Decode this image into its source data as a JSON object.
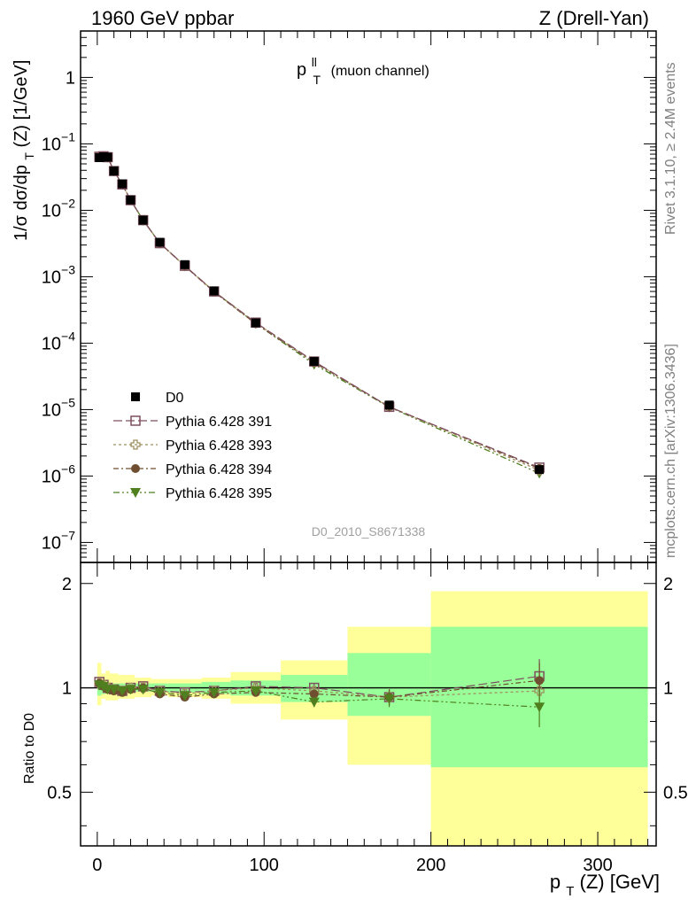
{
  "header": {
    "left": "1960 GeV ppbar",
    "right": "Z (Drell-Yan)"
  },
  "side": {
    "rivet": "Rivet 3.1.10, ≥ 2.4M events",
    "mcplots": "mcplots.cern.ch [arXiv:1306.3436]"
  },
  "analysis_id": "D0_2010_S8671338",
  "observable": {
    "symbol": "p",
    "sup": "ll",
    "sub": "T",
    "note": "(muon channel)"
  },
  "colors": {
    "data": "#000000",
    "py391": "#7f4f5f",
    "py393": "#9f8f5f",
    "py394": "#6f4f2f",
    "py395": "#4f7f1f",
    "band_inner": "#99ff99",
    "band_outer": "#ffff99"
  },
  "chart_data": [
    {
      "type": "scatter",
      "panel": "main",
      "ylabel": "1/σ dσ/dp_T(Z) [1/GeV]",
      "ylabel_parts": {
        "a": "1/σ  dσ/dp",
        "sub": "T",
        "b": "(Z) [1/GeV]"
      },
      "yscale": "log",
      "ylim": [
        5e-08,
        5
      ],
      "xlim": [
        -10,
        335
      ],
      "y_ticks": [
        {
          "value": 1e-07,
          "base": "10",
          "exp": "−7"
        },
        {
          "value": 1e-06,
          "base": "10",
          "exp": "−6"
        },
        {
          "value": 1e-05,
          "base": "10",
          "exp": "−5"
        },
        {
          "value": 0.0001,
          "base": "10",
          "exp": "−4"
        },
        {
          "value": 0.001,
          "base": "10",
          "exp": "−3"
        },
        {
          "value": 0.01,
          "base": "10",
          "exp": "−2"
        },
        {
          "value": 0.1,
          "base": "10",
          "exp": "−1"
        },
        {
          "value": 1,
          "base": "1",
          "exp": ""
        }
      ],
      "x": [
        1.25,
        3.75,
        6.25,
        10,
        15,
        20,
        27.5,
        37.5,
        52.5,
        70,
        95,
        130,
        175,
        265
      ],
      "series": [
        {
          "name": "D0",
          "style": "data",
          "values": [
            0.062,
            0.064,
            0.063,
            0.039,
            0.025,
            0.0143,
            0.0071,
            0.0033,
            0.00152,
            0.00061,
            0.000202,
            5.3e-05,
            1.17e-05,
            1.25e-06
          ]
        },
        {
          "name": "Pythia 6.428 391",
          "style": "open-square",
          "values": [
            0.064,
            0.065,
            0.063,
            0.039,
            0.0245,
            0.0142,
            0.0071,
            0.0032,
            0.00146,
            0.0006,
            0.000204,
            5.3e-05,
            1.1e-05,
            1.34e-06
          ]
        },
        {
          "name": "Pythia 6.428 393",
          "style": "open-cross",
          "values": [
            0.064,
            0.065,
            0.063,
            0.039,
            0.0245,
            0.0142,
            0.0071,
            0.0032,
            0.00146,
            0.0006,
            0.000202,
            5.2e-05,
            1.1e-05,
            1.22e-06
          ]
        },
        {
          "name": "Pythia 6.428 394",
          "style": "filled-circle",
          "values": [
            0.064,
            0.065,
            0.063,
            0.039,
            0.0245,
            0.0142,
            0.0071,
            0.0032,
            0.00144,
            0.00059,
            0.000196,
            5.1e-05,
            1.1e-05,
            1.3e-06
          ]
        },
        {
          "name": "Pythia 6.428 395",
          "style": "filled-triangle",
          "values": [
            0.064,
            0.065,
            0.063,
            0.039,
            0.0245,
            0.0142,
            0.0071,
            0.0032,
            0.00145,
            0.0006,
            0.000198,
            4.8e-05,
            1.09e-05,
            1.1e-06
          ]
        }
      ]
    },
    {
      "type": "scatter",
      "panel": "ratio",
      "xlabel": "p_T(Z) [GeV]",
      "xlabel_parts": {
        "a": "p",
        "sub": "T",
        "b": "(Z) [GeV]"
      },
      "ylabel": "Ratio to D0",
      "yscale": "log",
      "ylim": [
        0.35,
        2.3
      ],
      "xlim": [
        -10,
        335
      ],
      "x_ticks": [
        0,
        100,
        200,
        300
      ],
      "y_ticks": [
        0.5,
        1,
        2
      ],
      "reference_line": 1,
      "bins": [
        [
          0,
          2.5
        ],
        [
          2.5,
          5
        ],
        [
          5,
          7.5
        ],
        [
          7.5,
          12.5
        ],
        [
          12.5,
          17.5
        ],
        [
          17.5,
          22.5
        ],
        [
          22.5,
          32.5
        ],
        [
          32.5,
          42.5
        ],
        [
          42.5,
          62.5
        ],
        [
          62.5,
          80
        ],
        [
          80,
          110
        ],
        [
          110,
          150
        ],
        [
          150,
          200
        ],
        [
          200,
          330
        ]
      ],
      "band_inner": [
        [
          0.95,
          1.05
        ],
        [
          0.96,
          1.04
        ],
        [
          0.97,
          1.03
        ],
        [
          0.97,
          1.03
        ],
        [
          0.975,
          1.03
        ],
        [
          0.975,
          1.03
        ],
        [
          0.975,
          1.03
        ],
        [
          0.975,
          1.03
        ],
        [
          0.97,
          1.03
        ],
        [
          0.96,
          1.04
        ],
        [
          0.95,
          1.05
        ],
        [
          0.91,
          1.09
        ],
        [
          0.83,
          1.26
        ],
        [
          0.59,
          1.5
        ]
      ],
      "band_outer": [
        [
          0.89,
          1.18
        ],
        [
          0.93,
          1.1
        ],
        [
          0.92,
          1.12
        ],
        [
          0.92,
          1.1
        ],
        [
          0.93,
          1.09
        ],
        [
          0.93,
          1.09
        ],
        [
          0.94,
          1.07
        ],
        [
          0.95,
          1.06
        ],
        [
          0.94,
          1.06
        ],
        [
          0.93,
          1.07
        ],
        [
          0.9,
          1.11
        ],
        [
          0.81,
          1.2
        ],
        [
          0.6,
          1.5
        ],
        [
          0.35,
          1.9
        ]
      ],
      "x": [
        1.25,
        3.75,
        6.25,
        10,
        15,
        20,
        27.5,
        37.5,
        52.5,
        70,
        95,
        130,
        175,
        265
      ],
      "series": [
        {
          "name": "Pythia 6.428 391",
          "style": "open-square",
          "values": [
            1.04,
            1.02,
            1.0,
            0.99,
            0.98,
            1.0,
            1.01,
            0.98,
            0.97,
            0.98,
            1.01,
            1.0,
            0.94,
            1.08
          ],
          "errors": [
            0.02,
            0.02,
            0.02,
            0.02,
            0.02,
            0.02,
            0.02,
            0.02,
            0.02,
            0.02,
            0.02,
            0.03,
            0.05,
            0.13
          ]
        },
        {
          "name": "Pythia 6.428 393",
          "style": "open-cross",
          "values": [
            1.03,
            1.02,
            1.0,
            0.99,
            0.98,
            1.0,
            1.0,
            0.98,
            0.96,
            0.98,
            1.0,
            0.98,
            0.94,
            0.98
          ],
          "errors": [
            0.02,
            0.02,
            0.02,
            0.02,
            0.02,
            0.02,
            0.02,
            0.02,
            0.02,
            0.02,
            0.02,
            0.03,
            0.05,
            0.12
          ]
        },
        {
          "name": "Pythia 6.428 394",
          "style": "filled-circle",
          "values": [
            1.03,
            1.01,
            0.99,
            0.98,
            0.97,
            0.99,
            1.0,
            0.96,
            0.94,
            0.96,
            0.97,
            0.96,
            0.94,
            1.05
          ],
          "errors": [
            0.02,
            0.02,
            0.02,
            0.02,
            0.02,
            0.02,
            0.02,
            0.02,
            0.02,
            0.02,
            0.02,
            0.03,
            0.05,
            0.13
          ]
        },
        {
          "name": "Pythia 6.428 395",
          "style": "filled-triangle",
          "values": [
            1.02,
            1.01,
            0.99,
            0.99,
            0.98,
            0.99,
            0.99,
            0.97,
            0.95,
            0.97,
            0.98,
            0.91,
            0.93,
            0.88
          ],
          "errors": [
            0.02,
            0.02,
            0.02,
            0.02,
            0.02,
            0.02,
            0.02,
            0.02,
            0.02,
            0.02,
            0.02,
            0.03,
            0.05,
            0.11
          ]
        }
      ]
    }
  ]
}
